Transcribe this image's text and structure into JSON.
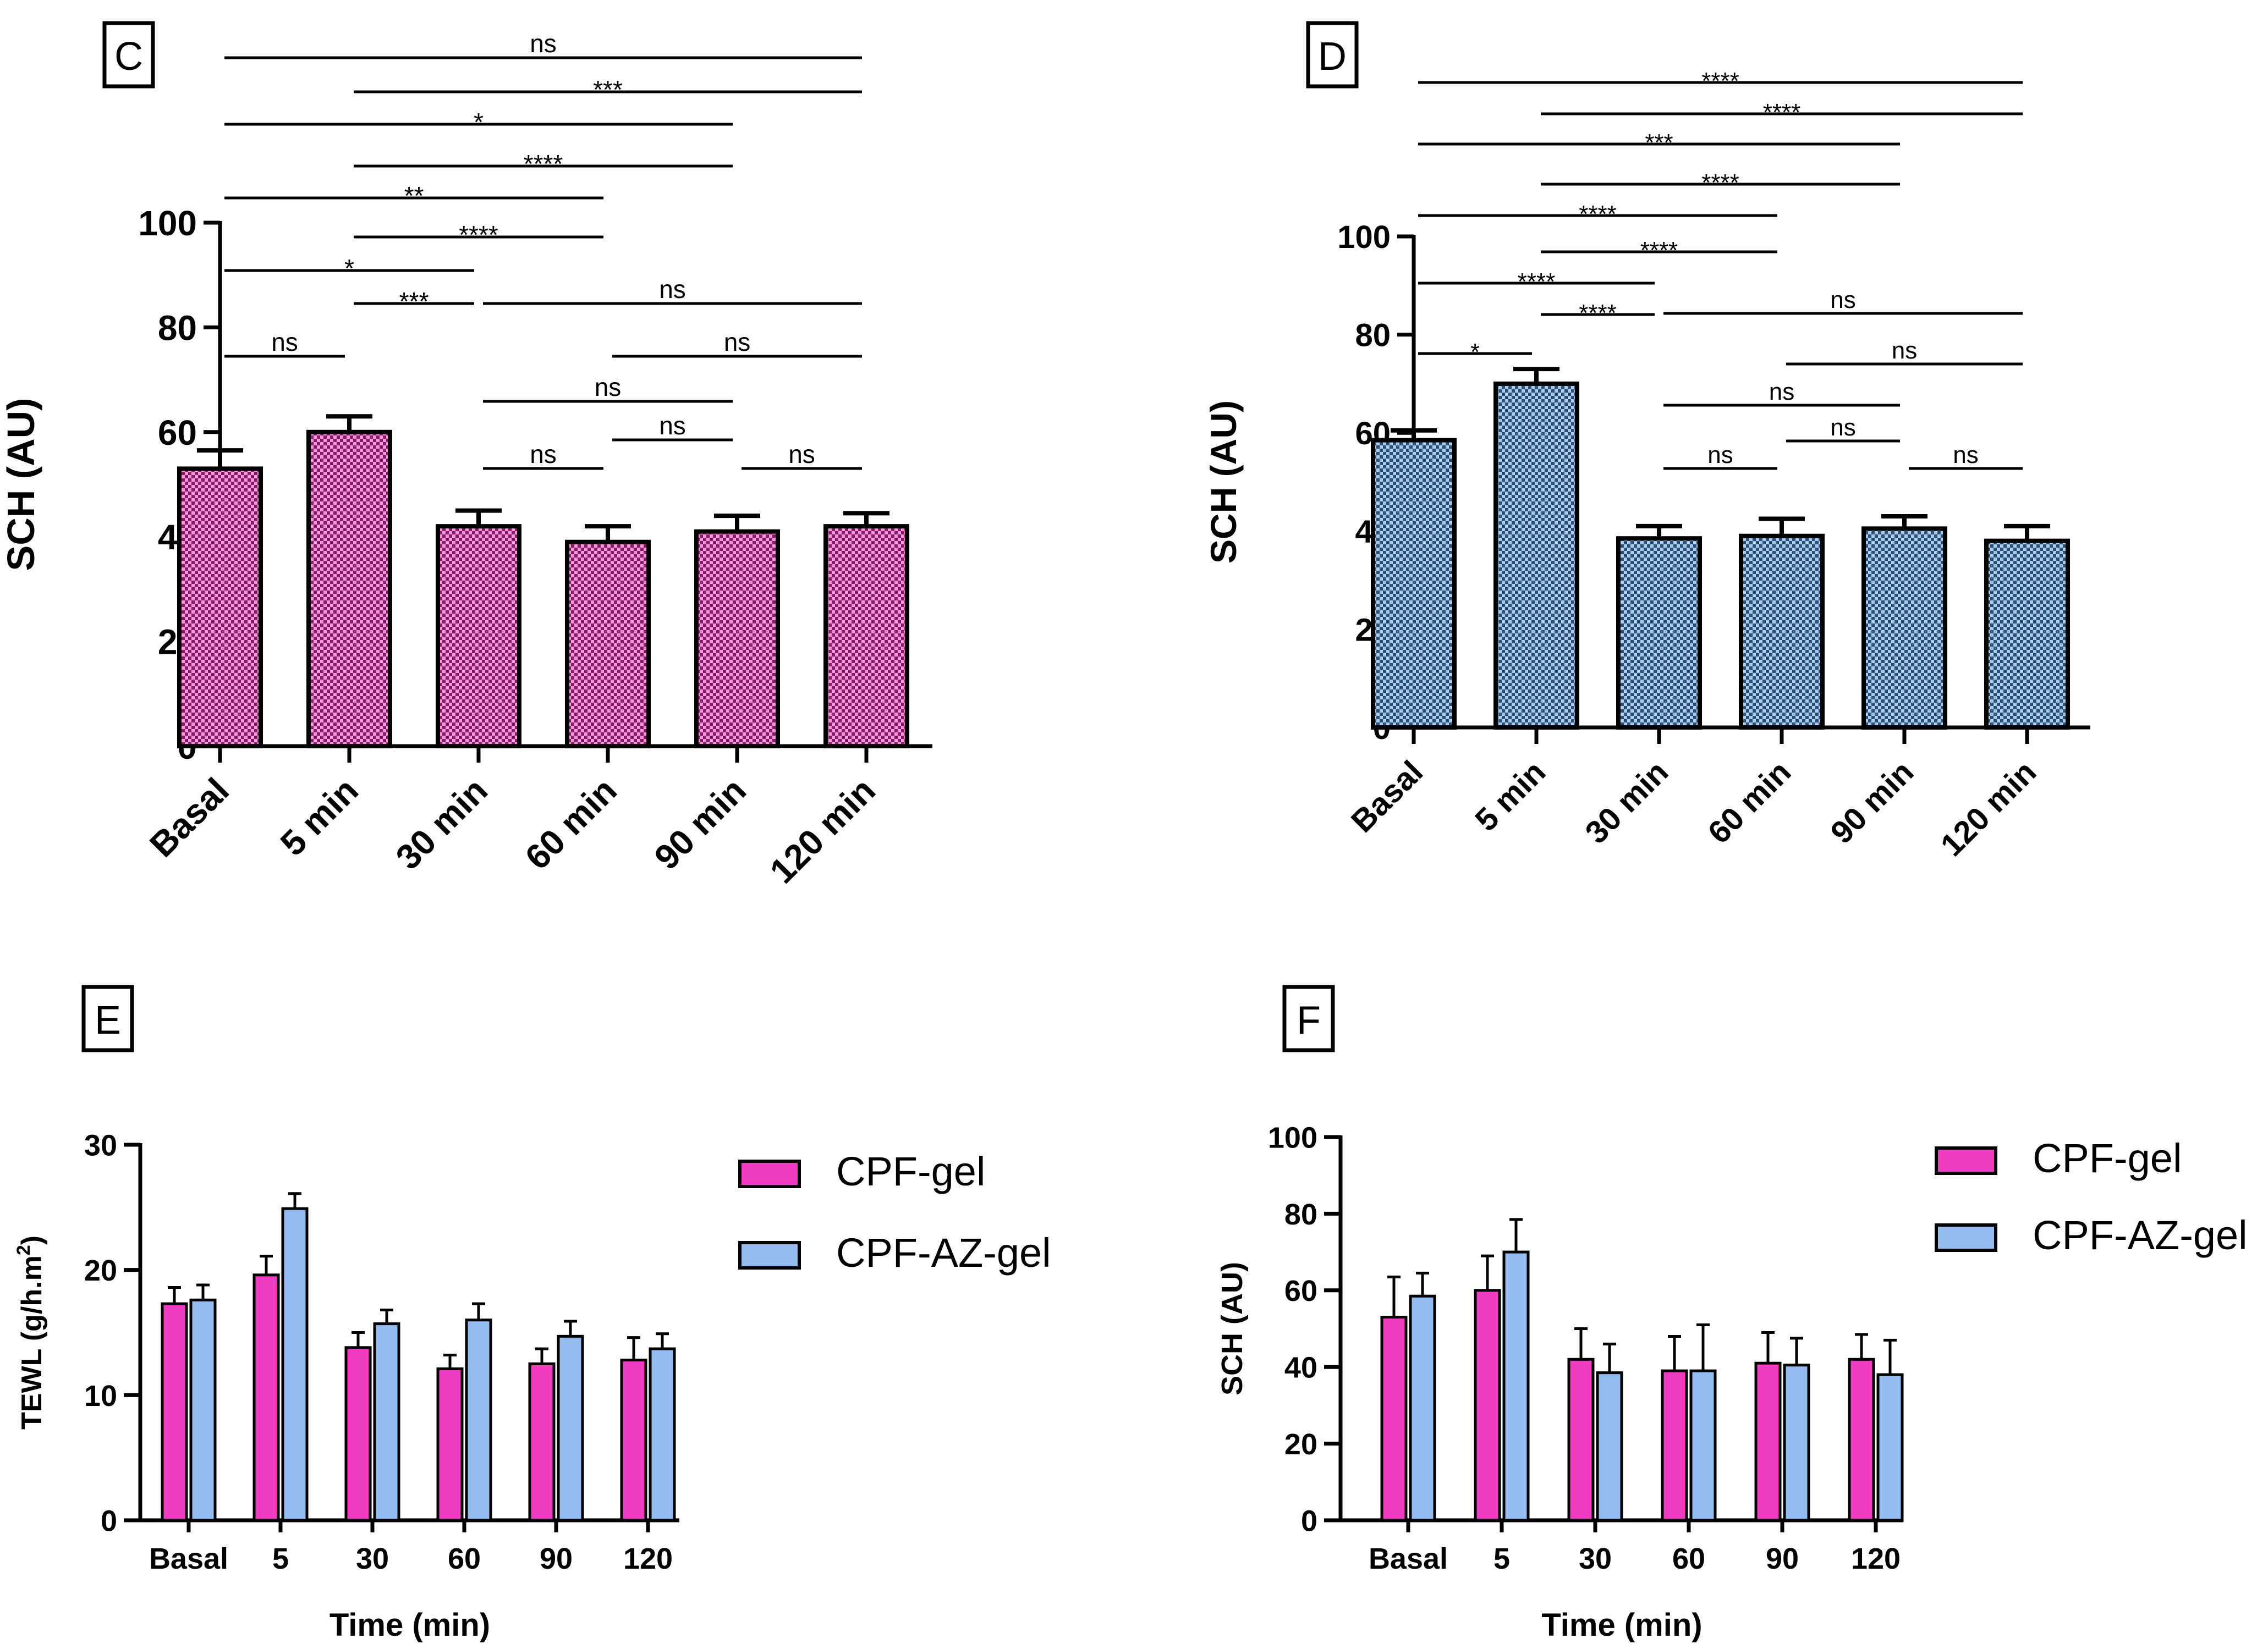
{
  "colors": {
    "cpf_gel": "#f03cc0",
    "cpf_az_gel": "#94bcf0",
    "pattern_dark_pink": "#8b1a6a",
    "pattern_light_pink": "#f59ad8",
    "pattern_dark_blue": "#2d4f72",
    "pattern_light_blue": "#a9cdf2"
  },
  "chart_data": [
    {
      "panel": "C",
      "type": "bar",
      "categories": [
        "Basal",
        "5 min",
        "30 min",
        "60 min",
        "90 min",
        "120 min"
      ],
      "values": [
        53,
        60,
        42,
        39,
        41,
        42
      ],
      "errors": [
        3.5,
        3,
        3,
        3,
        3,
        2.5
      ],
      "ylabel": "SCH (AU)",
      "xlabel": "",
      "ylim": [
        0,
        100
      ],
      "yticks": [
        0,
        20,
        40,
        60,
        80,
        100
      ],
      "fill": "checkered-pink",
      "significance": [
        {
          "a": "Basal",
          "b": "120 min",
          "label": "ns"
        },
        {
          "a": "5 min",
          "b": "120 min",
          "label": "***"
        },
        {
          "a": "Basal",
          "b": "90 min",
          "label": "*"
        },
        {
          "a": "5 min",
          "b": "90 min",
          "label": "****"
        },
        {
          "a": "Basal",
          "b": "60 min",
          "label": "**"
        },
        {
          "a": "5 min",
          "b": "60 min",
          "label": "****"
        },
        {
          "a": "Basal",
          "b": "30 min",
          "label": "*"
        },
        {
          "a": "5 min",
          "b": "30 min",
          "label": "***"
        },
        {
          "a": "30 min",
          "b": "120 min",
          "label": "ns"
        },
        {
          "a": "Basal",
          "b": "5 min",
          "label": "ns"
        },
        {
          "a": "60 min",
          "b": "120 min",
          "label": "ns"
        },
        {
          "a": "30 min",
          "b": "90 min",
          "label": "ns"
        },
        {
          "a": "60 min",
          "b": "90 min",
          "label": "ns"
        },
        {
          "a": "30 min",
          "b": "60 min",
          "label": "ns"
        },
        {
          "a": "90 min",
          "b": "120 min",
          "label": "ns"
        }
      ]
    },
    {
      "panel": "D",
      "type": "bar",
      "categories": [
        "Basal",
        "5 min",
        "30 min",
        "60 min",
        "90 min",
        "120 min"
      ],
      "values": [
        58.5,
        70,
        38.5,
        39,
        40.5,
        38
      ],
      "errors": [
        2,
        3,
        2.5,
        3.5,
        2.5,
        3
      ],
      "ylabel": "SCH (AU)",
      "xlabel": "",
      "ylim": [
        0,
        100
      ],
      "yticks": [
        0,
        20,
        40,
        60,
        80,
        100
      ],
      "fill": "checkered-blue",
      "significance": [
        {
          "a": "Basal",
          "b": "120 min",
          "label": "****"
        },
        {
          "a": "5 min",
          "b": "120 min",
          "label": "****"
        },
        {
          "a": "Basal",
          "b": "90 min",
          "label": "***"
        },
        {
          "a": "5 min",
          "b": "90 min",
          "label": "****"
        },
        {
          "a": "Basal",
          "b": "60 min",
          "label": "****"
        },
        {
          "a": "5 min",
          "b": "60 min",
          "label": "****"
        },
        {
          "a": "Basal",
          "b": "30 min",
          "label": "****"
        },
        {
          "a": "5 min",
          "b": "30 min",
          "label": "****"
        },
        {
          "a": "30 min",
          "b": "120 min",
          "label": "ns"
        },
        {
          "a": "Basal",
          "b": "5 min",
          "label": "*"
        },
        {
          "a": "60 min",
          "b": "120 min",
          "label": "ns"
        },
        {
          "a": "30 min",
          "b": "90 min",
          "label": "ns"
        },
        {
          "a": "60 min",
          "b": "90 min",
          "label": "ns"
        },
        {
          "a": "30 min",
          "b": "60 min",
          "label": "ns"
        },
        {
          "a": "90 min",
          "b": "120 min",
          "label": "ns"
        }
      ]
    },
    {
      "panel": "E",
      "type": "bar",
      "categories": [
        "Basal",
        "5",
        "30",
        "60",
        "90",
        "120"
      ],
      "series": [
        {
          "name": "CPF-gel",
          "values": [
            17.3,
            19.6,
            13.8,
            12.1,
            12.5,
            12.8
          ],
          "errors": [
            1.3,
            1.5,
            1.2,
            1.1,
            1.2,
            1.8
          ]
        },
        {
          "name": "CPF-AZ-gel",
          "values": [
            17.6,
            24.9,
            15.7,
            16.0,
            14.7,
            13.7
          ],
          "errors": [
            1.2,
            1.2,
            1.1,
            1.3,
            1.2,
            1.2
          ]
        }
      ],
      "ylabel": "TEWL (g/h.m",
      "ylabel_sup": "2",
      "ylabel_end": ")",
      "xlabel": "Time (min)",
      "ylim": [
        0,
        30
      ],
      "yticks": [
        0,
        10,
        20,
        30
      ],
      "legend": "right"
    },
    {
      "panel": "F",
      "type": "bar",
      "categories": [
        "Basal",
        "5",
        "30",
        "60",
        "90",
        "120"
      ],
      "series": [
        {
          "name": "CPF-gel",
          "values": [
            53,
            60,
            42,
            39,
            41,
            42
          ],
          "errors": [
            10.5,
            9,
            8,
            9,
            8,
            6.5
          ]
        },
        {
          "name": "CPF-AZ-gel",
          "values": [
            58.5,
            70,
            38.5,
            39,
            40.5,
            38
          ],
          "errors": [
            6,
            8.5,
            7.5,
            12,
            7,
            9
          ]
        }
      ],
      "ylabel": "SCH (AU)",
      "xlabel": "Time (min)",
      "ylim": [
        0,
        100
      ],
      "yticks": [
        0,
        20,
        40,
        60,
        80,
        100
      ],
      "legend": "right"
    }
  ]
}
